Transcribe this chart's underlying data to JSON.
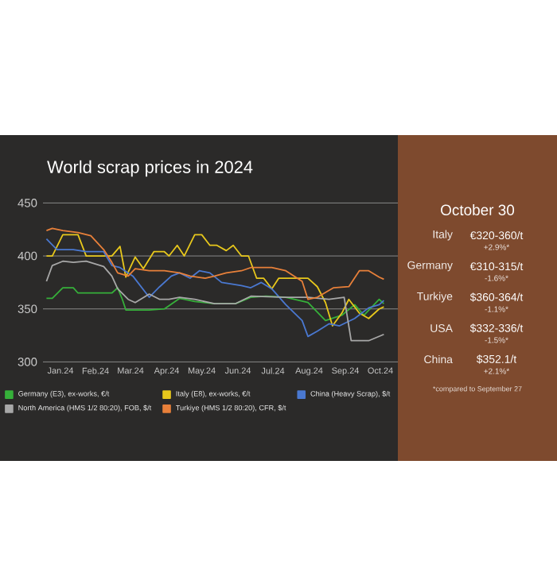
{
  "chart_data": {
    "type": "line",
    "title": "World scrap prices in 2024",
    "xlim": [
      "2024-01-01",
      "2024-10-31"
    ],
    "ylim": [
      300,
      450
    ],
    "xticks": [
      {
        "value": "2024-01-16",
        "label": "Jan.24"
      },
      {
        "value": "2024-02-15",
        "label": "Feb.24"
      },
      {
        "value": "2024-03-16",
        "label": "Mar.24"
      },
      {
        "value": "2024-04-16",
        "label": "Apr.24"
      },
      {
        "value": "2024-05-16",
        "label": "May.24"
      },
      {
        "value": "2024-06-16",
        "label": "Jun.24"
      },
      {
        "value": "2024-07-16",
        "label": "Jul.24"
      },
      {
        "value": "2024-08-16",
        "label": "Aug.24"
      },
      {
        "value": "2024-09-16",
        "label": "Sep.24"
      },
      {
        "value": "2024-10-16",
        "label": "Oct.24"
      }
    ],
    "yticks": [
      300,
      350,
      400,
      450
    ],
    "grid": "y",
    "legend": "bottom",
    "series": [
      {
        "name": "Germany (E3), ex-works, €/t",
        "color": "#36b03a",
        "x": [
          "2024-01-04",
          "2024-01-09",
          "2024-01-18",
          "2024-01-27",
          "2024-01-31",
          "2024-02-29",
          "2024-03-05",
          "2024-03-09",
          "2024-03-12",
          "2024-04-01",
          "2024-04-14",
          "2024-04-27",
          "2024-05-10",
          "2024-05-27",
          "2024-06-14",
          "2024-06-27",
          "2024-07-10",
          "2024-07-27",
          "2024-08-15",
          "2024-08-30",
          "2024-09-13",
          "2024-09-24",
          "2024-10-02",
          "2024-10-15",
          "2024-10-19"
        ],
        "values": [
          360,
          360,
          370,
          370,
          365,
          365,
          370,
          359,
          349,
          349,
          350,
          360,
          357,
          355,
          355,
          361,
          362,
          361,
          356,
          339,
          344,
          354,
          344,
          359,
          355
        ]
      },
      {
        "name": "Italy (E8), ex-works, €/t",
        "color": "#e8c81c",
        "x": [
          "2024-01-04",
          "2024-01-09",
          "2024-01-18",
          "2024-01-31",
          "2024-02-07",
          "2024-02-29",
          "2024-03-07",
          "2024-03-12",
          "2024-03-20",
          "2024-03-27",
          "2024-04-05",
          "2024-04-14",
          "2024-04-18",
          "2024-04-25",
          "2024-05-01",
          "2024-05-10",
          "2024-05-16",
          "2024-05-23",
          "2024-05-29",
          "2024-06-06",
          "2024-06-12",
          "2024-06-19",
          "2024-06-25",
          "2024-07-02",
          "2024-07-08",
          "2024-07-15",
          "2024-07-21",
          "2024-08-15",
          "2024-08-23",
          "2024-08-30",
          "2024-09-05",
          "2024-09-13",
          "2024-09-19",
          "2024-09-28",
          "2024-10-06",
          "2024-10-15",
          "2024-10-19"
        ],
        "values": [
          400,
          400,
          420,
          420,
          400,
          400,
          409,
          380,
          399,
          388,
          404,
          404,
          400,
          410,
          400,
          420,
          420,
          410,
          410,
          405,
          410,
          400,
          400,
          379,
          379,
          369,
          379,
          379,
          371,
          356,
          334,
          346,
          359,
          346,
          341,
          350,
          352
        ]
      },
      {
        "name": "China (Heavy Scrap), $/t",
        "color": "#4a78d0",
        "x": [
          "2024-01-04",
          "2024-01-13",
          "2024-01-27",
          "2024-02-07",
          "2024-02-22",
          "2024-02-29",
          "2024-03-07",
          "2024-03-18",
          "2024-04-01",
          "2024-04-10",
          "2024-04-20",
          "2024-04-27",
          "2024-05-06",
          "2024-05-14",
          "2024-05-23",
          "2024-06-02",
          "2024-06-19",
          "2024-06-27",
          "2024-07-06",
          "2024-07-15",
          "2024-07-27",
          "2024-08-10",
          "2024-08-15",
          "2024-08-23",
          "2024-09-02",
          "2024-09-11",
          "2024-09-24",
          "2024-10-06",
          "2024-10-15",
          "2024-10-19"
        ],
        "values": [
          416,
          406,
          406,
          404,
          404,
          391,
          389,
          381,
          361,
          371,
          381,
          384,
          379,
          386,
          384,
          375,
          372,
          370,
          375,
          369,
          354,
          339,
          324,
          329,
          336,
          334,
          341,
          351,
          354,
          358
        ]
      },
      {
        "name": "North America (HMS 1/2 80:20), FOB, $/t",
        "color": "#a8a8a8",
        "x": [
          "2024-01-04",
          "2024-01-09",
          "2024-01-18",
          "2024-01-27",
          "2024-02-07",
          "2024-02-22",
          "2024-02-29",
          "2024-03-05",
          "2024-03-14",
          "2024-03-20",
          "2024-04-01",
          "2024-04-10",
          "2024-04-18",
          "2024-04-27",
          "2024-05-10",
          "2024-05-27",
          "2024-06-14",
          "2024-06-27",
          "2024-07-27",
          "2024-08-15",
          "2024-09-02",
          "2024-09-15",
          "2024-09-21",
          "2024-10-06",
          "2024-10-19"
        ],
        "values": [
          376,
          391,
          395,
          394,
          395,
          390,
          381,
          369,
          359,
          356,
          364,
          359,
          359,
          361,
          359,
          355,
          355,
          362,
          361,
          361,
          359,
          361,
          320,
          320,
          326
        ]
      },
      {
        "name": "Turkiye (HMS 1/2 80:20), CFR, $/t",
        "color": "#e8803a",
        "x": [
          "2024-01-04",
          "2024-01-09",
          "2024-01-18",
          "2024-01-31",
          "2024-02-11",
          "2024-02-22",
          "2024-02-29",
          "2024-03-05",
          "2024-03-14",
          "2024-03-20",
          "2024-04-01",
          "2024-04-14",
          "2024-04-27",
          "2024-05-06",
          "2024-05-19",
          "2024-05-27",
          "2024-06-06",
          "2024-06-19",
          "2024-06-27",
          "2024-07-15",
          "2024-07-27",
          "2024-08-10",
          "2024-08-15",
          "2024-08-23",
          "2024-09-06",
          "2024-09-19",
          "2024-09-28",
          "2024-10-06",
          "2024-10-15",
          "2024-10-19"
        ],
        "values": [
          424,
          426,
          424,
          422,
          419,
          406,
          394,
          384,
          381,
          388,
          386,
          386,
          384,
          381,
          379,
          381,
          384,
          386,
          389,
          389,
          386,
          376,
          359,
          361,
          370,
          371,
          386,
          386,
          380,
          378
        ]
      }
    ],
    "annotations": [
      "October 30",
      "Italy",
      "€320-360/t",
      "+2.9%*",
      "Germany",
      "€310-315/t",
      "-1.6%*",
      "Turkiye",
      "$360-364/t",
      "-1.1%*",
      "USA",
      "$332-336/t",
      "-1.5%*",
      "China",
      "$352.1/t",
      "+2.1%*",
      "*compared to September 27"
    ]
  }
}
